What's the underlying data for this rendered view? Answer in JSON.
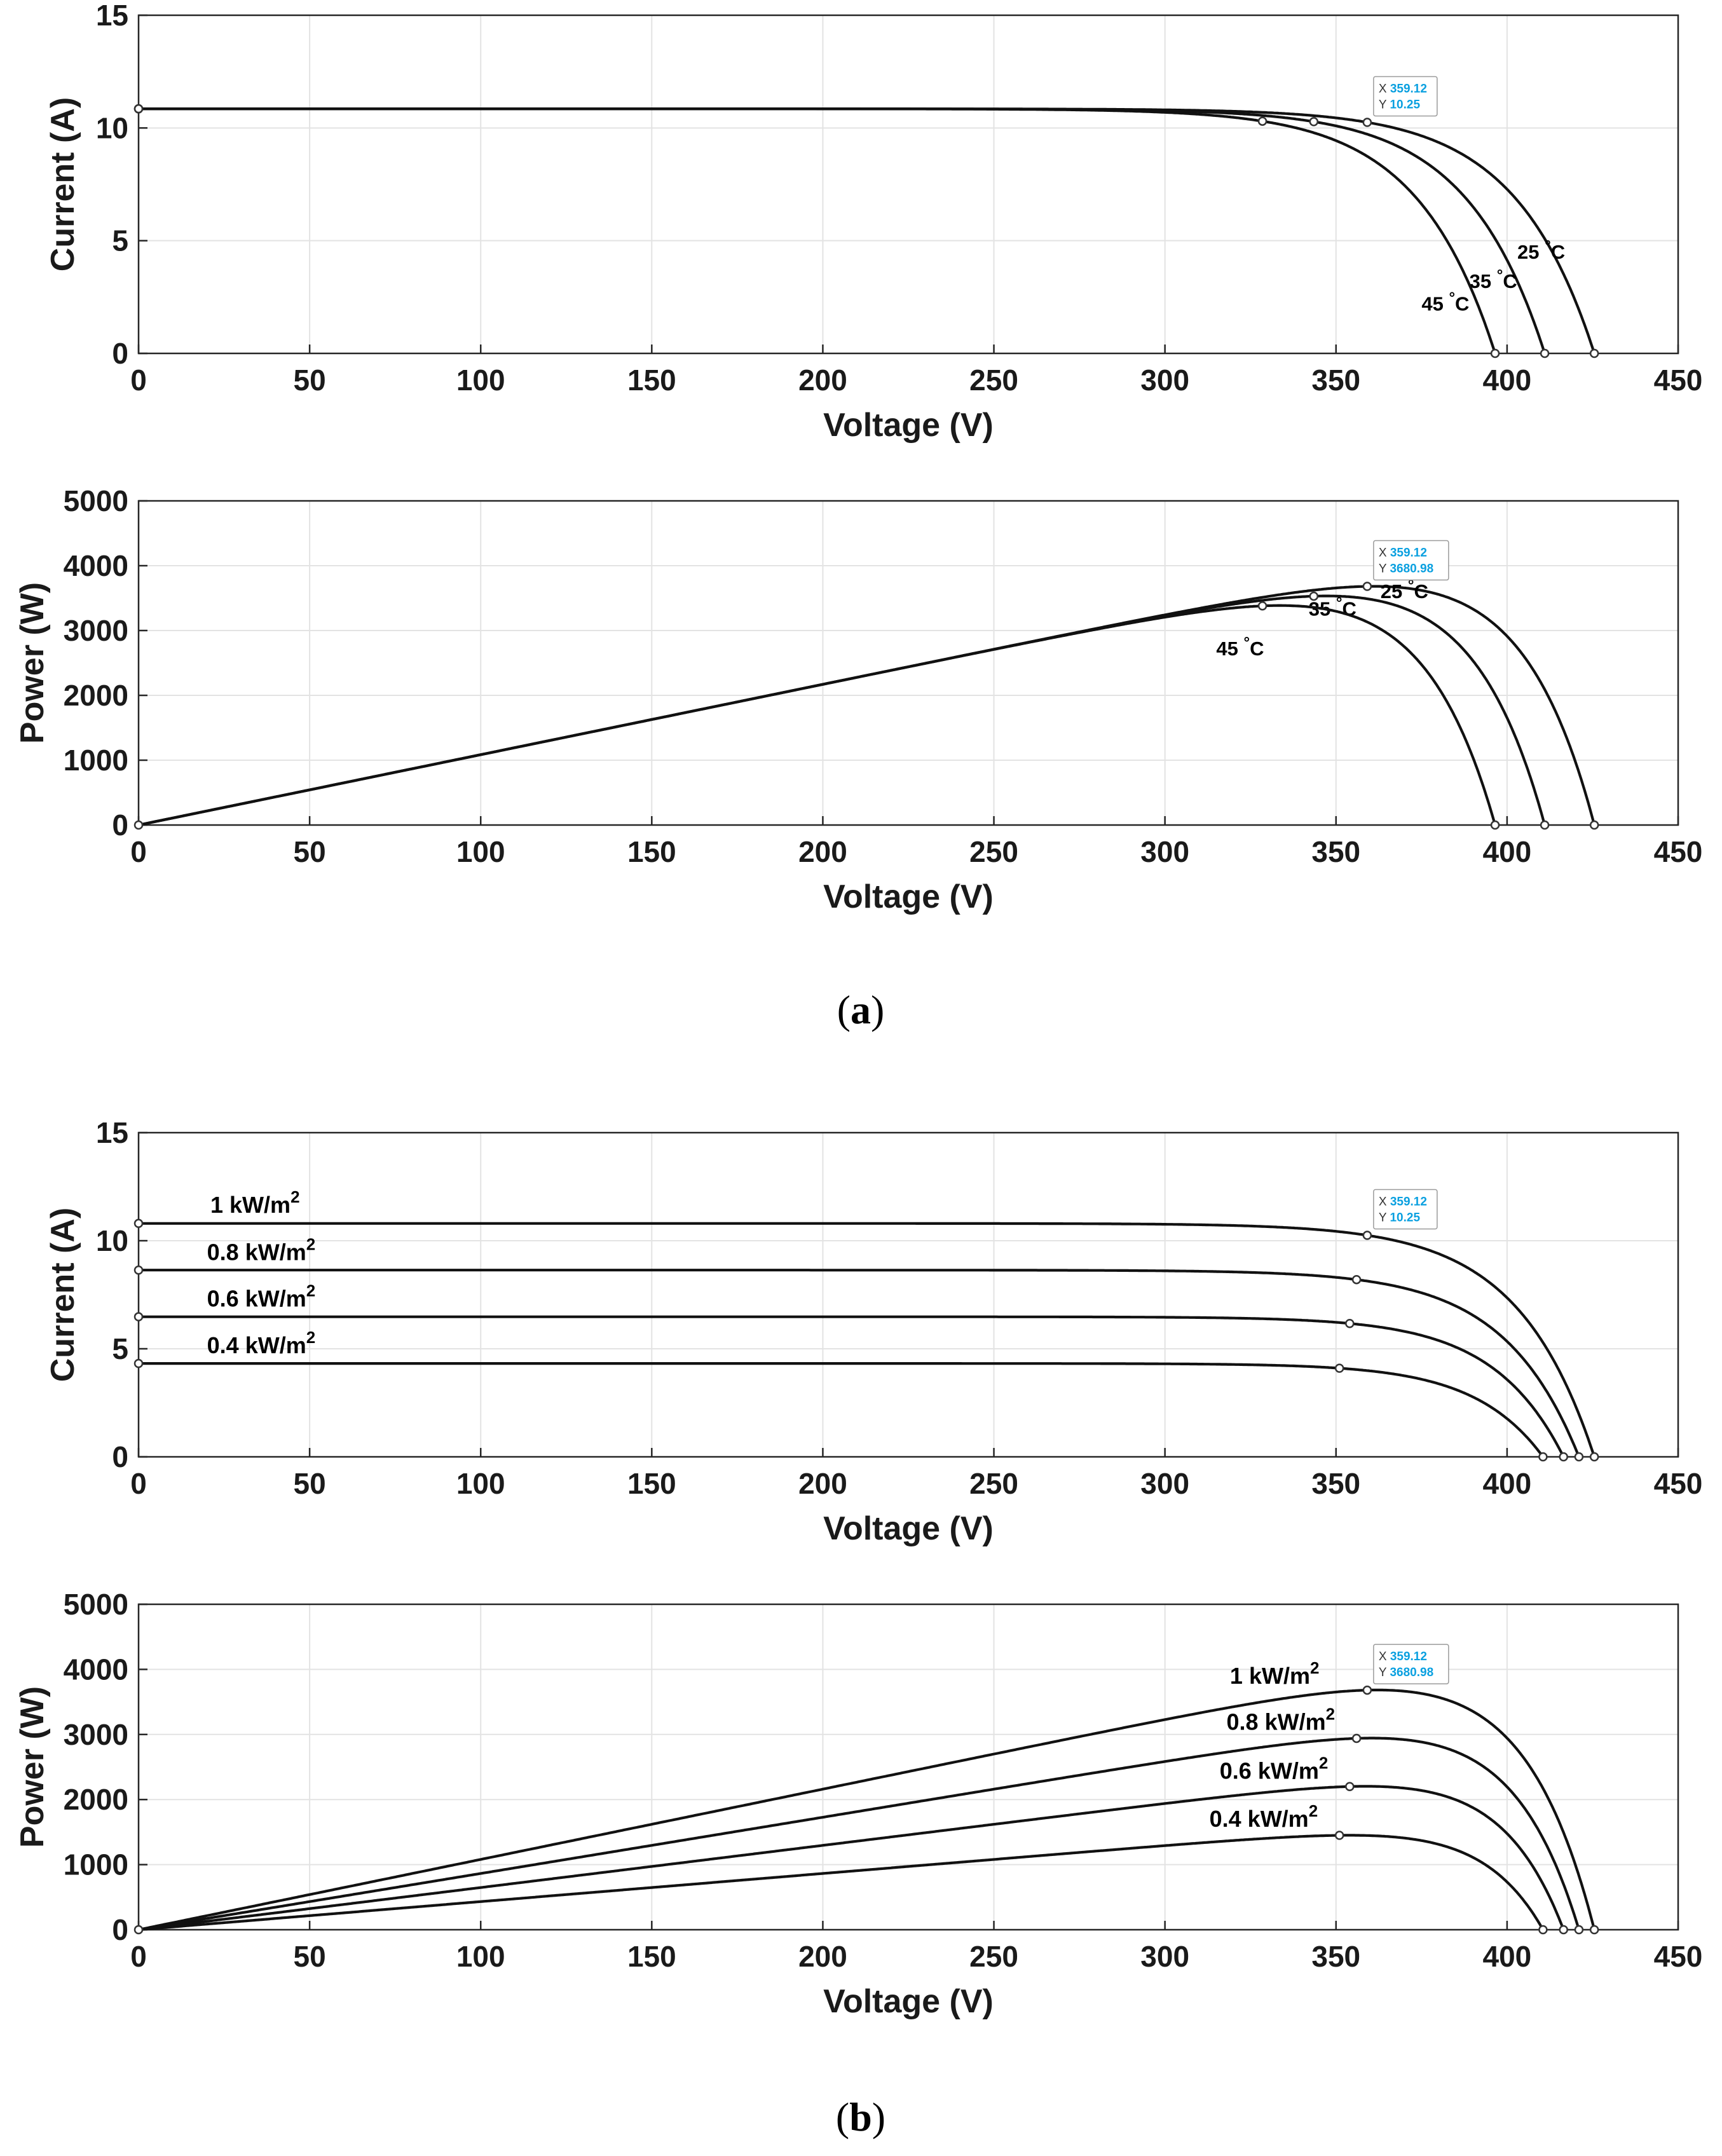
{
  "figure": {
    "captions": [
      {
        "open": "(",
        "letter": "a",
        "close": ")"
      },
      {
        "open": "(",
        "letter": "b",
        "close": ")"
      }
    ]
  },
  "chart_data": [
    {
      "id": "a-iv",
      "type": "line",
      "title": "",
      "xlabel": "Voltage (V)",
      "ylabel": "Current (A)",
      "xlim": [
        0,
        450
      ],
      "ylim": [
        0,
        15
      ],
      "xticks": [
        0,
        50,
        100,
        150,
        200,
        250,
        300,
        350,
        400,
        450
      ],
      "yticks": [
        0,
        5,
        10,
        15
      ],
      "grid": true,
      "series": [
        {
          "name": "25 °C",
          "label": "25",
          "unit": "°C",
          "kind": "iv",
          "isc": 10.85,
          "voc": 425.5,
          "mpp": [
            359.12,
            10.25
          ],
          "label_at": [
            403,
            4.2
          ]
        },
        {
          "name": "35 °C",
          "label": "35",
          "unit": "°C",
          "kind": "iv",
          "isc": 10.85,
          "voc": 411,
          "mpp": [
            343.5,
            10.28
          ],
          "label_at": [
            389,
            2.9
          ]
        },
        {
          "name": "45 °C",
          "label": "45",
          "unit": "°C",
          "kind": "iv",
          "isc": 10.85,
          "voc": 396.5,
          "mpp": [
            328.5,
            10.3
          ],
          "label_at": [
            375,
            1.9
          ]
        }
      ],
      "datatip": {
        "x_key": "X",
        "x_val": "359.12",
        "y_key": "Y",
        "y_val": "10.25",
        "point": [
          359.12,
          10.25
        ]
      }
    },
    {
      "id": "a-pv",
      "type": "line",
      "title": "",
      "xlabel": "Voltage (V)",
      "ylabel": "Power (W)",
      "xlim": [
        0,
        450
      ],
      "ylim": [
        0,
        5000
      ],
      "xticks": [
        0,
        50,
        100,
        150,
        200,
        250,
        300,
        350,
        400,
        450
      ],
      "yticks": [
        0,
        1000,
        2000,
        3000,
        4000,
        5000
      ],
      "grid": true,
      "series": [
        {
          "name": "25 °C",
          "label": "25",
          "unit": "°C",
          "kind": "pv",
          "isc": 10.85,
          "voc": 425.5,
          "mpp": [
            359.12,
            3680.98
          ],
          "label_at": [
            363,
            3500
          ]
        },
        {
          "name": "35 °C",
          "label": "35",
          "unit": "°C",
          "kind": "pv",
          "isc": 10.85,
          "voc": 411,
          "mpp": [
            343.5,
            3530
          ],
          "label_at": [
            342,
            3230
          ]
        },
        {
          "name": "45 °C",
          "label": "45",
          "unit": "°C",
          "kind": "pv",
          "isc": 10.85,
          "voc": 396.5,
          "mpp": [
            328.5,
            3380
          ],
          "label_at": [
            315,
            2620
          ]
        }
      ],
      "datatip": {
        "x_key": "X",
        "x_val": "359.12",
        "y_key": "Y",
        "y_val": "3680.98",
        "point": [
          359.12,
          3680.98
        ]
      }
    },
    {
      "id": "b-iv",
      "type": "line",
      "title": "",
      "xlabel": "Voltage (V)",
      "ylabel": "Current (A)",
      "xlim": [
        0,
        450
      ],
      "ylim": [
        0,
        15
      ],
      "xticks": [
        0,
        50,
        100,
        150,
        200,
        250,
        300,
        350,
        400,
        450
      ],
      "yticks": [
        0,
        5,
        10,
        15
      ],
      "grid": true,
      "series": [
        {
          "name": "1 kW/m2",
          "label": "1 kW/m",
          "sup": "2",
          "kind": "iv",
          "isc": 10.8,
          "voc": 425.5,
          "mpp": [
            359.12,
            10.25
          ],
          "label_at": [
            21,
            11.3
          ]
        },
        {
          "name": "0.8 kW/m2",
          "label": "0.8 kW/m",
          "sup": "2",
          "kind": "iv",
          "isc": 8.64,
          "voc": 421,
          "mpp": [
            356,
            8.2
          ],
          "label_at": [
            20,
            9.1
          ]
        },
        {
          "name": "0.6 kW/m2",
          "label": "0.6 kW/m",
          "sup": "2",
          "kind": "iv",
          "isc": 6.48,
          "voc": 416.5,
          "mpp": [
            354,
            6.17
          ],
          "label_at": [
            20,
            6.95
          ]
        },
        {
          "name": "0.4 kW/m2",
          "label": "0.4 kW/m",
          "sup": "2",
          "kind": "iv",
          "isc": 4.32,
          "voc": 410.5,
          "mpp": [
            351,
            4.1
          ],
          "label_at": [
            20,
            4.8
          ]
        }
      ],
      "datatip": {
        "x_key": "X",
        "x_val": "359.12",
        "y_key": "Y",
        "y_val": "10.25",
        "point": [
          359.12,
          10.25
        ]
      }
    },
    {
      "id": "b-pv",
      "type": "line",
      "title": "",
      "xlabel": "Voltage (V)",
      "ylabel": "Power (W)",
      "xlim": [
        0,
        450
      ],
      "ylim": [
        0,
        5000
      ],
      "xticks": [
        0,
        50,
        100,
        150,
        200,
        250,
        300,
        350,
        400,
        450
      ],
      "yticks": [
        0,
        1000,
        2000,
        3000,
        4000,
        5000
      ],
      "grid": true,
      "series": [
        {
          "name": "1 kW/m2",
          "label": "1 kW/m",
          "sup": "2",
          "kind": "pv",
          "isc": 10.8,
          "voc": 425.5,
          "mpp": [
            359.12,
            3680.98
          ],
          "label_at": [
            319,
            3780
          ]
        },
        {
          "name": "0.8 kW/m2",
          "label": "0.8 kW/m",
          "sup": "2",
          "kind": "pv",
          "isc": 8.64,
          "voc": 421,
          "mpp": [
            356,
            2940
          ],
          "label_at": [
            318,
            3070
          ]
        },
        {
          "name": "0.6 kW/m2",
          "label": "0.6 kW/m",
          "sup": "2",
          "kind": "pv",
          "isc": 6.48,
          "voc": 416.5,
          "mpp": [
            354,
            2200
          ],
          "label_at": [
            316,
            2320
          ]
        },
        {
          "name": "0.4 kW/m2",
          "label": "0.4 kW/m",
          "sup": "2",
          "kind": "pv",
          "isc": 4.32,
          "voc": 410.5,
          "mpp": [
            351,
            1450
          ],
          "label_at": [
            313,
            1580
          ]
        }
      ],
      "datatip": {
        "x_key": "X",
        "x_val": "359.12",
        "y_key": "Y",
        "y_val": "3680.98",
        "point": [
          359.12,
          3680.98
        ]
      }
    }
  ]
}
